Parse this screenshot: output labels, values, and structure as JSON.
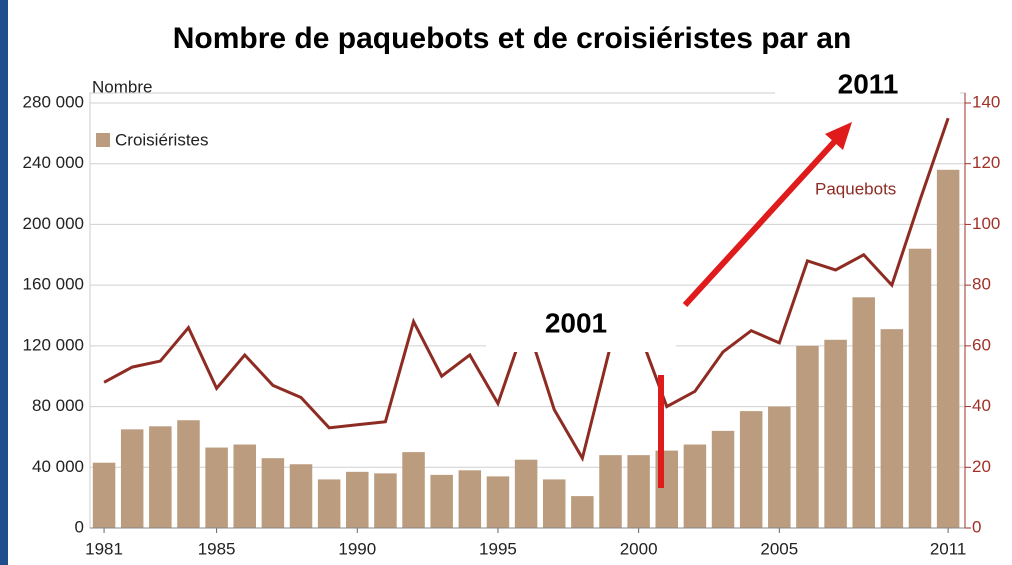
{
  "chart_data": {
    "type": "bar",
    "title": "Nombre de paquebots et de croisiéristes par an",
    "ylabel": "Nombre",
    "x": [
      1981,
      1982,
      1983,
      1984,
      1985,
      1986,
      1987,
      1988,
      1989,
      1990,
      1991,
      1992,
      1993,
      1994,
      1995,
      1996,
      1997,
      1998,
      1999,
      2000,
      2001,
      2002,
      2003,
      2004,
      2005,
      2006,
      2007,
      2008,
      2009,
      2010,
      2011
    ],
    "xlim": [
      1980.5,
      2011.6
    ],
    "xticks": [
      1981,
      1985,
      1990,
      1995,
      2000,
      2005,
      2011
    ],
    "ylim": [
      0,
      280000
    ],
    "yticks": [
      0,
      {
        "value": 40000,
        "label": "40 000"
      },
      {
        "value": 80000,
        "label": "80 000"
      },
      {
        "value": 120000,
        "label": "120 000"
      },
      {
        "value": 160000,
        "label": "160 000"
      },
      {
        "value": 200000,
        "label": "200 000"
      },
      {
        "value": 240000,
        "label": "240 000"
      },
      {
        "value": 280000,
        "label": "280 000"
      }
    ],
    "y2lim": [
      0,
      140
    ],
    "y2ticks": [
      0,
      20,
      40,
      60,
      80,
      100,
      120,
      140
    ],
    "grid": true,
    "series": [
      {
        "name": "Croisiéristes",
        "type": "bar",
        "color": "#bc9c7e",
        "values": [
          43000,
          65000,
          67000,
          71000,
          53000,
          55000,
          46000,
          42000,
          32000,
          37000,
          36000,
          50000,
          35000,
          38000,
          34000,
          45000,
          32000,
          21000,
          48000,
          48000,
          51000,
          55000,
          64000,
          77000,
          80000,
          120000,
          124000,
          152000,
          131000,
          184000,
          236000
        ]
      },
      {
        "name": "Paquebots",
        "type": "line",
        "axis": "y2",
        "color": "#8e2b22",
        "values": [
          48,
          53,
          55,
          66,
          46,
          57,
          47,
          43,
          33,
          34,
          35,
          68,
          50,
          57,
          41,
          68,
          39,
          23,
          60,
          65,
          40,
          45,
          58,
          65,
          61,
          88,
          85,
          90,
          80,
          108,
          135
        ]
      }
    ],
    "annotations": [
      "2001",
      "2011"
    ]
  }
}
